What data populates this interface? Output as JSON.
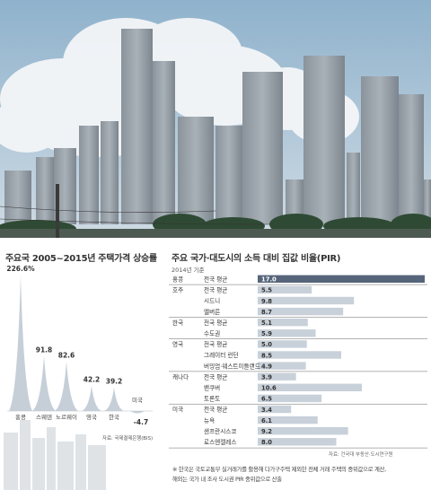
{
  "left": {
    "title": "주요국 2005~2015년 주택가격 상승률",
    "source": "자료: 국제결제은행(BIS)"
  },
  "right": {
    "title": "주요 국가·대도시의 소득 대비 집값 비율(PIR)",
    "subtitle": "2014년 기준",
    "source": "자료: 건국대 부동산·도시연구원",
    "note_1": "※ 한국은 국토교통부 실거래가를 활용해 다가구주택 제외한 전체 거래 주택의 중위값으로 계산,",
    "note_2": "해외는 국가 내 조사 도시권 PIR 중위값으로 산출"
  },
  "colors": {
    "peak_fill": "#c3ccd6",
    "bar_fill": "#c8d0d9",
    "bar_highlight": "#56657a",
    "sky_top": "#8fb2cc",
    "sky_bottom": "#cfdbe4"
  },
  "chart_data": [
    {
      "type": "area",
      "title": "주요국 2005~2015년 주택가격 상승률",
      "unit": "%",
      "categories": [
        "홍콩",
        "스웨덴",
        "노르웨이",
        "영국",
        "한국",
        "미국"
      ],
      "values": [
        226.6,
        91.8,
        82.6,
        42.2,
        39.2,
        -4.7
      ],
      "value_labels": [
        "226.6%",
        "91.8",
        "82.6",
        "42.2",
        "39.2",
        "-4.7"
      ]
    },
    {
      "type": "bar",
      "title": "주요 국가·대도시의 소득 대비 집값 비율(PIR)",
      "subtitle": "2014년 기준",
      "xlim": [
        0,
        17
      ],
      "groups": [
        {
          "country": "홍콩",
          "rows": [
            {
              "label": "전국 평균",
              "value": 17.0,
              "value_label": "17.0",
              "highlight": true
            }
          ]
        },
        {
          "country": "호주",
          "rows": [
            {
              "label": "전국 평균",
              "value": 5.5,
              "value_label": "5.5"
            },
            {
              "label": "시드니",
              "value": 9.8,
              "value_label": "9.8"
            },
            {
              "label": "멜버른",
              "value": 8.7,
              "value_label": "8.7"
            }
          ]
        },
        {
          "country": "한국",
          "rows": [
            {
              "label": "전국 평균",
              "value": 5.1,
              "value_label": "5.1"
            },
            {
              "label": "수도권",
              "value": 5.9,
              "value_label": "5.9"
            }
          ]
        },
        {
          "country": "영국",
          "rows": [
            {
              "label": "전국 평균",
              "value": 5.0,
              "value_label": "5.0"
            },
            {
              "label": "그레이터 런던",
              "value": 8.5,
              "value_label": "8.5"
            },
            {
              "label": "버밍엄·웨스트미들랜드",
              "value": 4.9,
              "value_label": "4.9"
            }
          ]
        },
        {
          "country": "캐나다",
          "rows": [
            {
              "label": "전국 평균",
              "value": 3.9,
              "value_label": "3.9"
            },
            {
              "label": "밴쿠버",
              "value": 10.6,
              "value_label": "10.6"
            },
            {
              "label": "토론토",
              "value": 6.5,
              "value_label": "6.5"
            }
          ]
        },
        {
          "country": "미국",
          "rows": [
            {
              "label": "전국 평균",
              "value": 3.4,
              "value_label": "3.4"
            },
            {
              "label": "뉴욕",
              "value": 6.1,
              "value_label": "6.1"
            },
            {
              "label": "샌프란시스코",
              "value": 9.2,
              "value_label": "9.2"
            },
            {
              "label": "로스엔젤레스",
              "value": 8.0,
              "value_label": "8.0"
            }
          ]
        }
      ]
    }
  ]
}
